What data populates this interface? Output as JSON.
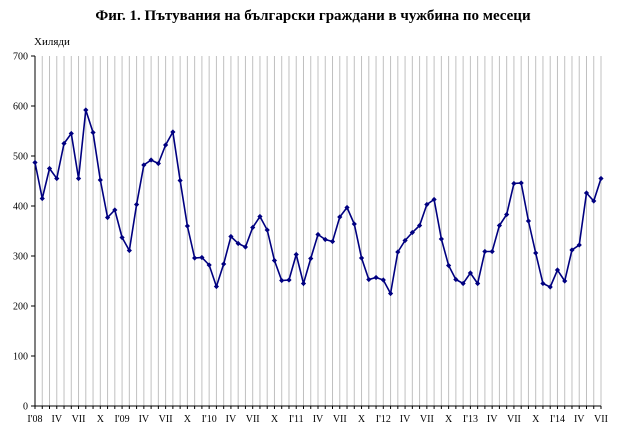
{
  "chart_data": {
    "type": "line",
    "title": "Фиг. 1. Пътувания на български граждани в чужбина по месеци",
    "unit_label": "Хиляди",
    "ylim": [
      0,
      700
    ],
    "yticks": [
      0,
      100,
      200,
      300,
      400,
      500,
      600,
      700
    ],
    "grid": {
      "vertical": true,
      "horizontal": false
    },
    "x_tick_labels": [
      "I'08",
      "IV",
      "VII",
      "X",
      "I'09",
      "IV",
      "VII",
      "X",
      "I'10",
      "IV",
      "VII",
      "X",
      "I'11",
      "IV",
      "VII",
      "X",
      "I'12",
      "IV",
      "VII",
      "X",
      "I'13",
      "IV",
      "VII",
      "X",
      "I'14",
      "IV",
      "VII"
    ],
    "x_tick_month_index": [
      0,
      3,
      6,
      9,
      12,
      15,
      18,
      21,
      24,
      27,
      30,
      33,
      36,
      39,
      42,
      45,
      48,
      51,
      54,
      57,
      60,
      63,
      66,
      69,
      72,
      75,
      78
    ],
    "series": [
      {
        "name": "",
        "color": "#000080",
        "values": [
          487,
          415,
          475,
          455,
          525,
          545,
          455,
          592,
          547,
          452,
          377,
          392,
          337,
          311,
          403,
          482,
          492,
          485,
          522,
          548,
          451,
          360,
          296,
          297,
          282,
          239,
          284,
          339,
          325,
          318,
          357,
          379,
          352,
          291,
          251,
          252,
          303,
          245,
          295,
          343,
          333,
          329,
          378,
          397,
          364,
          296,
          253,
          257,
          252,
          225,
          308,
          331,
          347,
          361,
          403,
          413,
          334,
          281,
          253,
          245,
          266,
          245,
          309,
          309,
          361,
          383,
          445,
          446,
          370,
          306,
          245,
          238,
          272,
          250,
          312,
          322,
          426,
          410,
          455
        ]
      }
    ]
  }
}
